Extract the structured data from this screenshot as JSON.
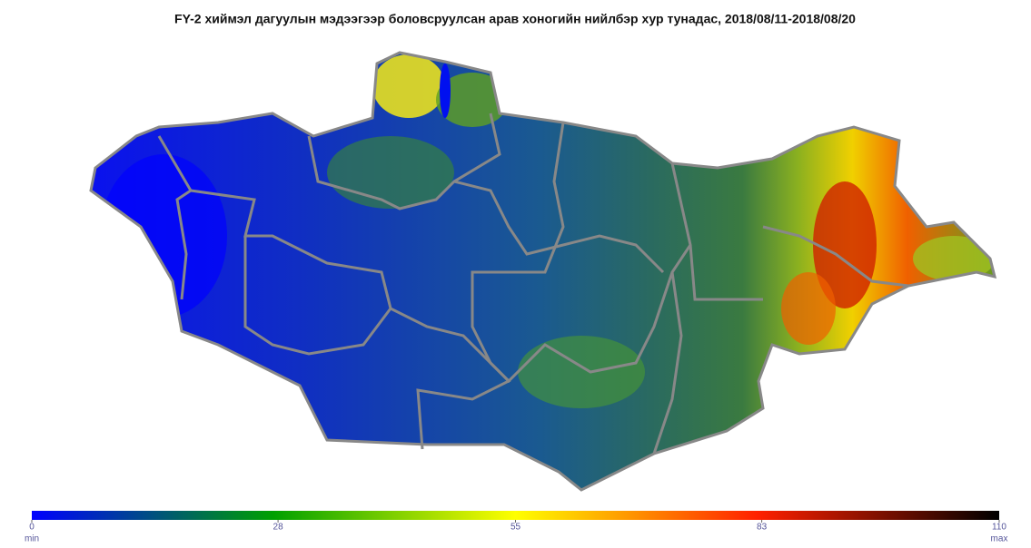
{
  "title": "FY-2 хиймэл дагуулын мэдээгээр боловсруулсан арав хоногийн нийлбэр хур тунадас, 2018/08/11-2018/08/20",
  "colorbar": {
    "range": [
      0,
      110
    ],
    "ticks": [
      0,
      28,
      55,
      83,
      110
    ],
    "min_label": "min",
    "max_label": "max",
    "colors": [
      "#0000ff",
      "#00a000",
      "#ffff00",
      "#ff2000",
      "#000000"
    ]
  }
}
